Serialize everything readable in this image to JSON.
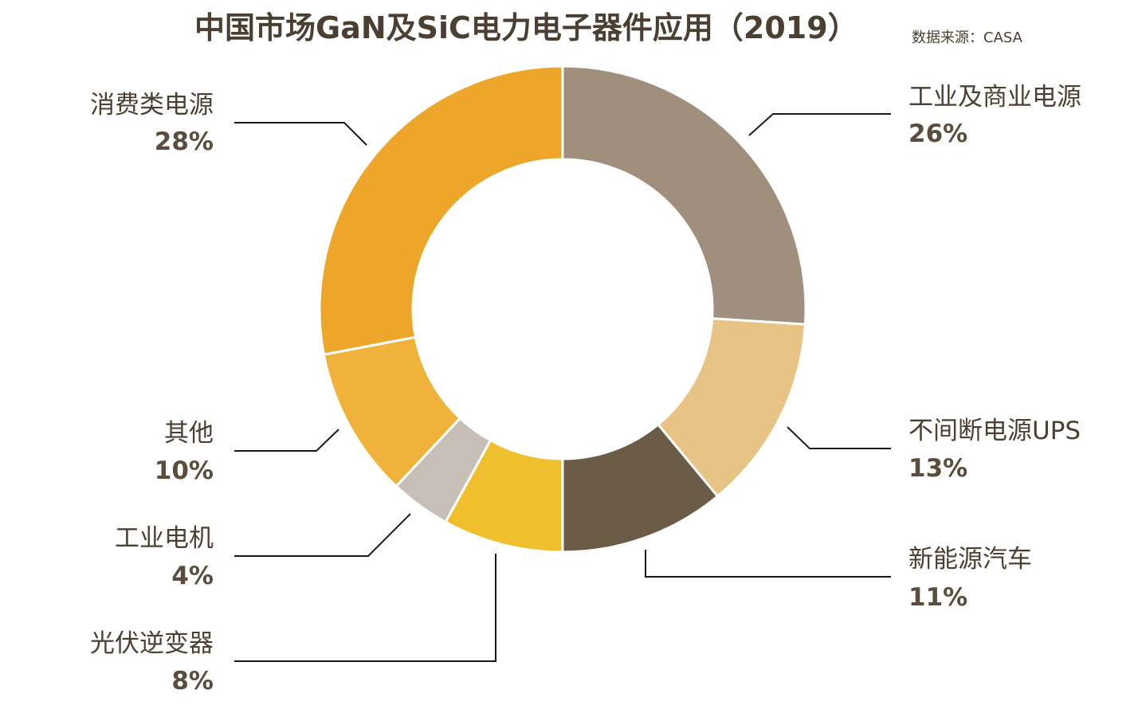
{
  "chart_data": {
    "type": "pie",
    "donut": true,
    "title": "中国市场GaN及SiC电力电子器件应用（2019）",
    "source": "数据来源：CASA",
    "slices": [
      {
        "name": "工业及商业电源",
        "value": 26,
        "label": "26%",
        "color": "#a08f7c"
      },
      {
        "name": "不间断电源UPS",
        "value": 13,
        "label": "13%",
        "color": "#e8c386"
      },
      {
        "name": "新能源汽车",
        "value": 11,
        "label": "11%",
        "color": "#6b5c48"
      },
      {
        "name": "光伏逆变器",
        "value": 8,
        "label": "8%",
        "color": "#f0bf2d"
      },
      {
        "name": "工业电机",
        "value": 4,
        "label": "4%",
        "color": "#c7bfb7"
      },
      {
        "name": "其他",
        "value": 10,
        "label": "10%",
        "color": "#efb23a"
      },
      {
        "name": "消费类电源",
        "value": 28,
        "label": "28%",
        "color": "#eea62a"
      }
    ]
  }
}
